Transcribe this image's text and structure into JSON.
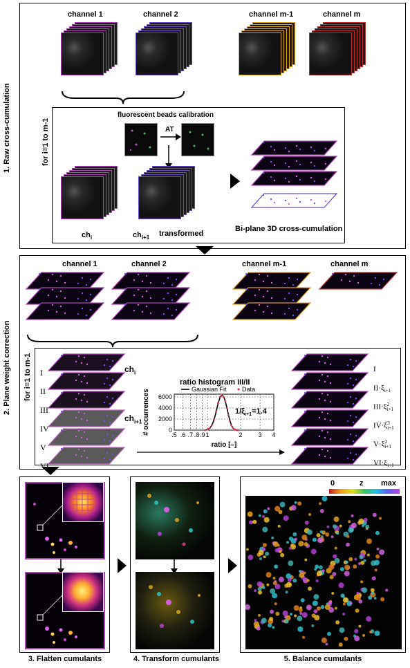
{
  "section1": {
    "title": "1. Raw cross-cumulation",
    "loop_label": "for i=1 to m-1",
    "channels": [
      "channel 1",
      "channel 2",
      "channel m-1",
      "channel m"
    ],
    "calibration_title": "fluorescent beads calibration",
    "at_label": "AT",
    "ch_i": "ch",
    "ch_i_sub": "i",
    "ch_i1": "ch",
    "ch_i1_sub": "i+1",
    "transformed": "transformed",
    "biplane": "Bi-plane 3D cross-cumulation"
  },
  "section2": {
    "title": "2. Plane weight correction",
    "loop_label": "for i=1 to m-1",
    "channels": [
      "channel 1",
      "channel 2",
      "channel m-1",
      "channel m"
    ],
    "roman": [
      "I",
      "II",
      "III",
      "IV",
      "V",
      "VI"
    ],
    "ch_i": "ch",
    "ch_i_sub": "i",
    "ch_i1": "ch",
    "ch_i1_sub": "i+1",
    "right_labels": [
      "I",
      "II·ξ",
      "III·ξ",
      "IV·ξ",
      "V·ξ",
      "VI·ξ"
    ],
    "right_sub": "i+1",
    "right_sup": [
      "",
      "",
      "2",
      "3",
      "2",
      ""
    ]
  },
  "chart_data": {
    "type": "line",
    "title": "ratio histogram III/II",
    "xlabel": "ratio [–]",
    "ylabel": "# occurrences",
    "xscale": "log",
    "x_ticks": [
      ".5",
      ".6",
      ".7",
      ".8",
      ".9",
      "1",
      "2",
      "3",
      "4"
    ],
    "y_ticks": [
      "0",
      "2000",
      "4000",
      "6000"
    ],
    "xlim": [
      0.5,
      4
    ],
    "ylim": [
      0,
      6500
    ],
    "grid": true,
    "legend": [
      {
        "name": "Gaussian Fit",
        "color": "#000000"
      },
      {
        "name": "Data",
        "color": "#d1365a"
      }
    ],
    "legend_position": "top",
    "annotation": "1/ξ",
    "annotation_sub": "i+1",
    "annotation_value": "=1.4",
    "series": [
      {
        "name": "Gaussian Fit",
        "x": [
          0.95,
          1.0,
          1.05,
          1.1,
          1.15,
          1.2,
          1.25,
          1.3,
          1.35,
          1.4,
          1.45,
          1.5,
          1.55,
          1.6,
          1.65,
          1.7,
          1.75,
          1.8,
          1.85,
          1.9
        ],
        "y": [
          0,
          100,
          350,
          900,
          1900,
          3300,
          4800,
          5900,
          6300,
          6100,
          5300,
          4100,
          2800,
          1700,
          900,
          420,
          180,
          60,
          20,
          0
        ]
      },
      {
        "name": "Data",
        "x": [
          0.95,
          1.0,
          1.05,
          1.1,
          1.15,
          1.2,
          1.25,
          1.3,
          1.35,
          1.4,
          1.45,
          1.5,
          1.55,
          1.6,
          1.65,
          1.7,
          1.75,
          1.8,
          1.85,
          1.9
        ],
        "y": [
          0,
          120,
          380,
          950,
          2000,
          3400,
          4900,
          6000,
          6350,
          6000,
          5200,
          4000,
          2700,
          1650,
          880,
          400,
          170,
          55,
          15,
          0
        ]
      }
    ]
  },
  "bottom": {
    "captions": [
      "3. Flatten cumulants",
      "4. Transform cumulants",
      "5. Balance cumulants"
    ],
    "colorbar_labels": [
      "0",
      "z",
      "max"
    ]
  },
  "colors": {
    "magenta": "#b040b8",
    "purple": "#6a4cc8",
    "orange": "#e0a020",
    "red": "#c03030"
  }
}
